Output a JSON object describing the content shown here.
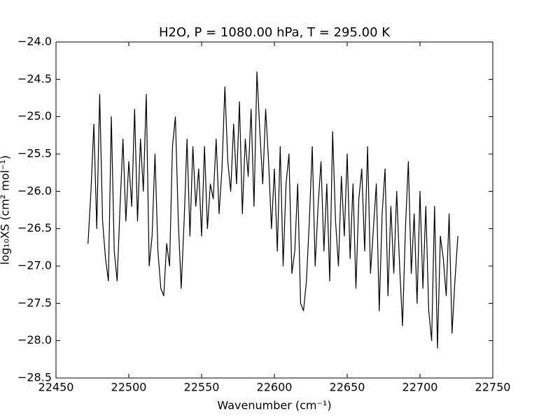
{
  "chart_data": {
    "type": "line",
    "title": "H2O, P = 1080.00 hPa, T = 295.00 K",
    "x_label": "Wavenumber (cm⁻¹)",
    "y_label": "log₁₀XS (cm² mol⁻¹)",
    "x": [
      22472,
      22474,
      22476,
      22478,
      22480,
      22482,
      22484,
      22486,
      22488,
      22490,
      22492,
      22494,
      22496,
      22498,
      22500,
      22502,
      22504,
      22506,
      22508,
      22510,
      22512,
      22514,
      22516,
      22518,
      22520,
      22522,
      22524,
      22526,
      22528,
      22530,
      22532,
      22534,
      22536,
      22538,
      22540,
      22542,
      22544,
      22546,
      22548,
      22550,
      22552,
      22554,
      22556,
      22558,
      22560,
      22562,
      22564,
      22566,
      22568,
      22570,
      22572,
      22574,
      22576,
      22578,
      22580,
      22582,
      22584,
      22586,
      22588,
      22590,
      22592,
      22594,
      22596,
      22598,
      22600,
      22602,
      22604,
      22606,
      22608,
      22610,
      22612,
      22614,
      22616,
      22618,
      22620,
      22622,
      22624,
      22626,
      22628,
      22630,
      22632,
      22634,
      22636,
      22638,
      22640,
      22642,
      22644,
      22646,
      22648,
      22650,
      22652,
      22654,
      22656,
      22658,
      22660,
      22662,
      22664,
      22666,
      22668,
      22670,
      22672,
      22674,
      22676,
      22678,
      22680,
      22682,
      22684,
      22686,
      22688,
      22690,
      22692,
      22694,
      22696,
      22698,
      22700,
      22702,
      22704,
      22706,
      22708,
      22710,
      22712,
      22714,
      22716,
      22718,
      22720,
      22722,
      22724,
      22726
    ],
    "series": [
      {
        "color": "#000000",
        "values": [
          -26.7,
          -26.0,
          -25.1,
          -26.5,
          -24.7,
          -26.4,
          -26.9,
          -27.2,
          -25.0,
          -26.8,
          -27.2,
          -26.2,
          -25.3,
          -26.4,
          -25.6,
          -26.2,
          -24.9,
          -26.4,
          -25.3,
          -26.0,
          -24.7,
          -27.0,
          -26.6,
          -25.5,
          -26.8,
          -27.3,
          -27.4,
          -26.7,
          -27.0,
          -25.4,
          -25.0,
          -26.4,
          -27.3,
          -26.4,
          -25.3,
          -26.6,
          -25.4,
          -26.2,
          -25.7,
          -26.6,
          -25.4,
          -26.5,
          -25.9,
          -26.1,
          -25.3,
          -26.3,
          -25.7,
          -24.6,
          -25.6,
          -26.0,
          -25.1,
          -25.9,
          -24.8,
          -26.3,
          -25.3,
          -25.8,
          -24.9,
          -26.2,
          -24.4,
          -25.2,
          -25.9,
          -24.9,
          -25.6,
          -26.5,
          -25.7,
          -26.8,
          -25.4,
          -27.0,
          -25.9,
          -25.5,
          -27.1,
          -26.8,
          -25.9,
          -27.5,
          -27.6,
          -27.2,
          -26.4,
          -25.4,
          -27.0,
          -26.2,
          -25.6,
          -26.8,
          -25.9,
          -27.2,
          -25.2,
          -26.4,
          -27.0,
          -25.8,
          -26.6,
          -25.5,
          -26.9,
          -25.9,
          -27.3,
          -26.1,
          -25.7,
          -26.8,
          -25.4,
          -27.1,
          -26.5,
          -25.9,
          -27.6,
          -26.3,
          -25.7,
          -27.4,
          -26.2,
          -27.1,
          -26.0,
          -27.0,
          -27.8,
          -26.5,
          -25.6,
          -27.1,
          -26.3,
          -27.5,
          -26.0,
          -27.3,
          -26.2,
          -27.6,
          -28.0,
          -26.2,
          -28.1,
          -26.6,
          -26.9,
          -27.4,
          -26.3,
          -27.9,
          -27.2,
          -26.6
        ]
      }
    ],
    "xlim": [
      22450,
      22750
    ],
    "xticks": [
      22450,
      22500,
      22550,
      22600,
      22650,
      22700,
      22750
    ],
    "ylim": [
      -28.5,
      -24.0
    ],
    "yticks": [
      {
        "value": -24.0,
        "label": "−24.0"
      },
      {
        "value": -24.5,
        "label": "−24.5"
      },
      {
        "value": -25.0,
        "label": "−25.0"
      },
      {
        "value": -25.5,
        "label": "−25.5"
      },
      {
        "value": -26.0,
        "label": "−26.0"
      },
      {
        "value": -26.5,
        "label": "−26.5"
      },
      {
        "value": -27.0,
        "label": "−27.0"
      },
      {
        "value": -27.5,
        "label": "−27.5"
      },
      {
        "value": -28.0,
        "label": "−28.0"
      },
      {
        "value": -28.5,
        "label": "−28.5"
      }
    ],
    "grid": false
  }
}
